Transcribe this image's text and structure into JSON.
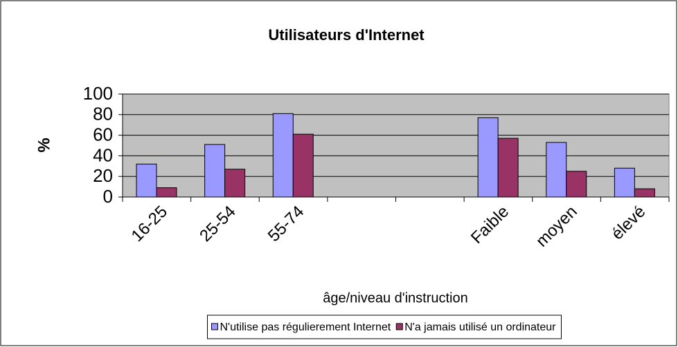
{
  "chart_data": {
    "type": "bar",
    "title": "Utilisateurs d'Internet",
    "x_label": "âge/niveau d'instruction",
    "y_label": "%",
    "categories": [
      "16-25",
      "25-54",
      "55-74",
      null,
      null,
      "Faible",
      "moyen",
      "élevé"
    ],
    "series": [
      {
        "name": "N'utilise pas régulierement Internet",
        "color": "#9999ff",
        "values": [
          32,
          51,
          81,
          null,
          null,
          77,
          53,
          28
        ]
      },
      {
        "name": "N'a jamais utilisé un ordinateur",
        "color": "#993366",
        "values": [
          9,
          27,
          61,
          null,
          null,
          57,
          25,
          8
        ]
      }
    ],
    "ylim": [
      0,
      100
    ],
    "yticks": [
      0,
      20,
      40,
      60,
      80,
      100
    ],
    "grid": true,
    "legend": "bottom"
  }
}
